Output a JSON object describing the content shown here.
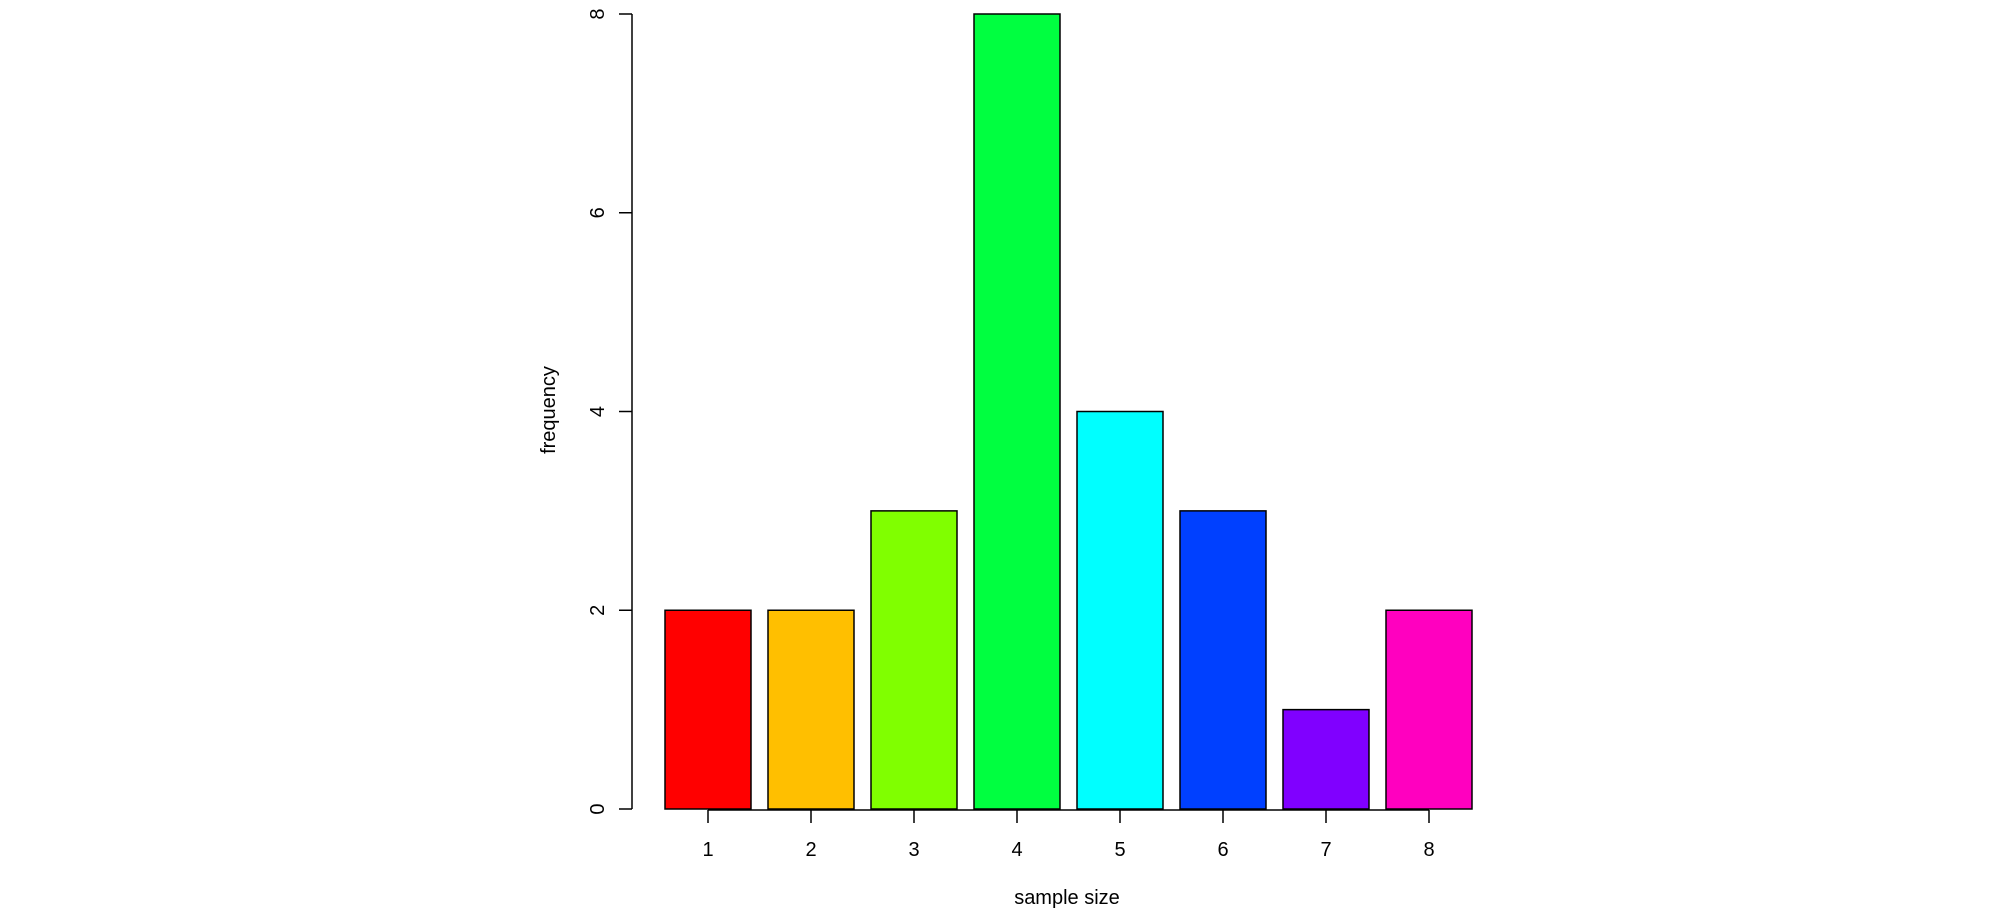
{
  "chart_data": {
    "type": "bar",
    "title": "",
    "xlabel": "sample size",
    "ylabel": "frequency",
    "categories": [
      "1",
      "2",
      "3",
      "4",
      "5",
      "6",
      "7",
      "8"
    ],
    "values": [
      2,
      2,
      3,
      8,
      4,
      3,
      1,
      2
    ],
    "colors": [
      "#FF0000",
      "#FFBF00",
      "#80FF00",
      "#00FF40",
      "#00FFFF",
      "#0040FF",
      "#8000FF",
      "#FF00BF"
    ],
    "ylim": [
      0,
      8
    ],
    "yticks": [
      0,
      2,
      4,
      6,
      8
    ],
    "grid": false,
    "legend": "none"
  }
}
